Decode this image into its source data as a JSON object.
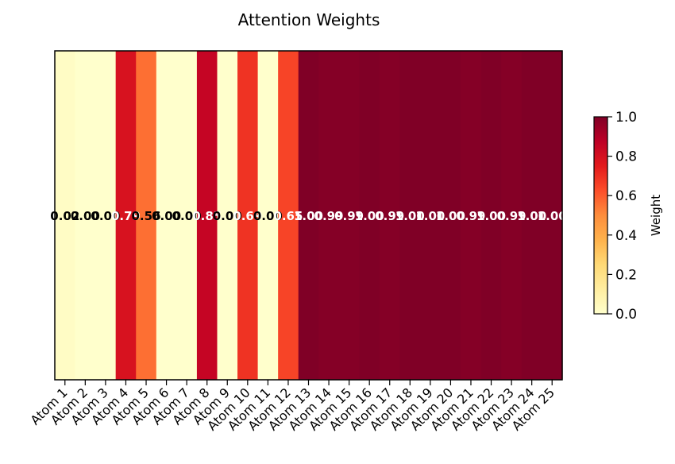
{
  "chart_data": {
    "type": "heatmap",
    "title": "Attention Weights",
    "categories": [
      "Atom 1",
      "Atom 2",
      "Atom 3",
      "Atom 4",
      "Atom 5",
      "Atom 6",
      "Atom 7",
      "Atom 8",
      "Atom 9",
      "Atom 10",
      "Atom 11",
      "Atom 12",
      "Atom 13",
      "Atom 14",
      "Atom 15",
      "Atom 16",
      "Atom 17",
      "Atom 18",
      "Atom 19",
      "Atom 20",
      "Atom 21",
      "Atom 22",
      "Atom 23",
      "Atom 24",
      "Atom 25"
    ],
    "values": [
      0.02,
      0.0,
      0.0,
      0.79,
      0.56,
      0.0,
      0.0,
      0.85,
      0.0,
      0.69,
      0.0,
      0.65,
      1.0,
      0.99,
      0.99,
      1.0,
      0.99,
      1.0,
      1.0,
      1.0,
      0.99,
      1.0,
      0.99,
      1.0,
      1.0
    ],
    "value_labels": [
      "0.02",
      "0.00",
      "0.00",
      "0.79",
      "0.56",
      "0.00",
      "0.00",
      "0.85",
      "0.00",
      "0.69",
      "0.00",
      "0.65",
      "1.00",
      "0.99",
      "0.99",
      "1.00",
      "0.99",
      "1.00",
      "1.00",
      "1.00",
      "0.99",
      "1.00",
      "0.99",
      "1.00",
      "1.00"
    ],
    "colorbar": {
      "label": "Weight",
      "range": [
        0.0,
        1.0
      ],
      "ticks": [
        "0.0",
        "0.2",
        "0.4",
        "0.6",
        "0.8",
        "1.0"
      ],
      "colormap": "YlOrRd"
    },
    "y_ticks": "none"
  }
}
